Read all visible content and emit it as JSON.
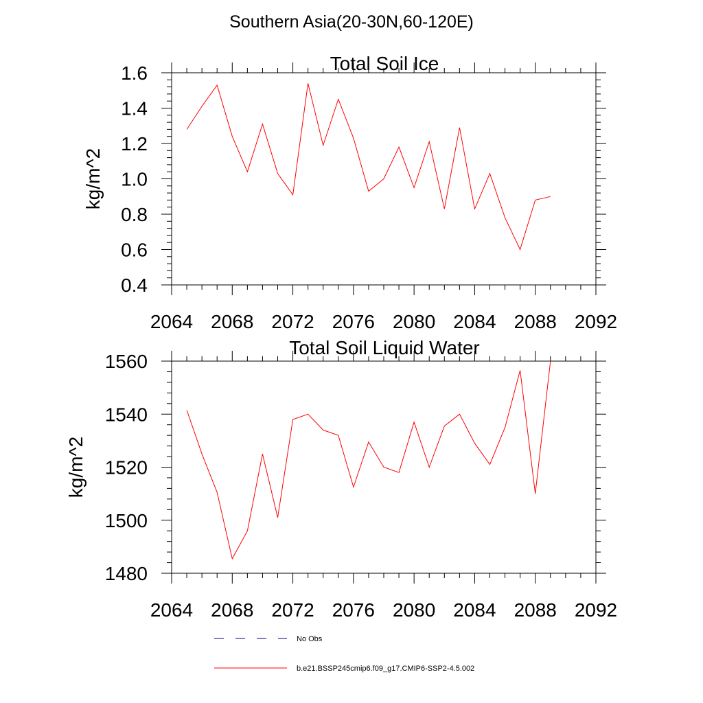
{
  "title": "Southern Asia(20-30N,60-120E)",
  "colors": {
    "model_line": "#ff0000",
    "obs_line": "#000080"
  },
  "legend": [
    {
      "label": "No Obs",
      "style": "dashed",
      "color": "#000080"
    },
    {
      "label": "b.e21.BSSP245cmip6.f09_g17.CMIP6-SSP2-4.5.002",
      "style": "solid",
      "color": "#ff0000"
    }
  ],
  "chart_data": [
    {
      "type": "line",
      "title": "Total Soil Ice",
      "ylabel": "kg/m^2",
      "xlabel": "",
      "xlim": [
        2064,
        2092
      ],
      "ylim": [
        0.4,
        1.6
      ],
      "xticks": [
        2064,
        2068,
        2072,
        2076,
        2080,
        2084,
        2088,
        2092
      ],
      "yticks": [
        "0.4",
        "0.6",
        "0.8",
        "1.0",
        "1.2",
        "1.4",
        "1.6"
      ],
      "series": [
        {
          "x": [
            2065,
            2066,
            2067,
            2068,
            2069,
            2070,
            2071,
            2072,
            2073,
            2074,
            2075,
            2076,
            2077,
            2078,
            2079,
            2080,
            2081,
            2082,
            2083,
            2084,
            2085,
            2086,
            2087,
            2088,
            2089
          ],
          "values": [
            1.28,
            1.41,
            1.53,
            1.24,
            1.04,
            1.31,
            1.03,
            0.91,
            1.54,
            1.19,
            1.45,
            1.23,
            0.93,
            1.0,
            1.18,
            0.95,
            1.21,
            0.83,
            1.29,
            0.83,
            1.03,
            0.78,
            0.6,
            0.88,
            0.9
          ]
        }
      ]
    },
    {
      "type": "line",
      "title": "Total Soil Liquid Water",
      "ylabel": "kg/m^2",
      "xlabel": "",
      "xlim": [
        2064,
        2092
      ],
      "ylim": [
        1480,
        1560
      ],
      "xticks": [
        2064,
        2068,
        2072,
        2076,
        2080,
        2084,
        2088,
        2092
      ],
      "yticks": [
        "1480",
        "1500",
        "1520",
        "1540",
        "1560"
      ],
      "series": [
        {
          "x": [
            2065,
            2066,
            2067,
            2068,
            2069,
            2070,
            2071,
            2072,
            2073,
            2074,
            2075,
            2076,
            2077,
            2078,
            2079,
            2080,
            2081,
            2082,
            2083,
            2084,
            2085,
            2086,
            2087,
            2088,
            2089
          ],
          "values": [
            1541.5,
            1525,
            1510.5,
            1485.5,
            1496,
            1525,
            1501,
            1538,
            1540,
            1534,
            1532,
            1512.5,
            1529.5,
            1520,
            1518,
            1537,
            1520,
            1535.5,
            1540,
            1529,
            1521,
            1535,
            1556.5,
            1510,
            1560
          ]
        }
      ]
    }
  ]
}
